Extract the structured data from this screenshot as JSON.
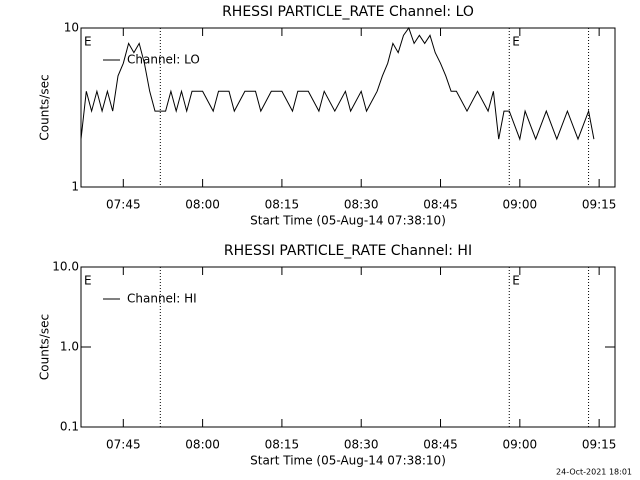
{
  "chart_data": [
    {
      "type": "line",
      "title": "RHESSI PARTICLE_RATE Channel: LO",
      "xlabel": "Start Time (05-Aug-14 07:38:10)",
      "ylabel": "Counts/sec",
      "x": [
        "07:37",
        "07:38",
        "07:39",
        "07:40",
        "07:41",
        "07:42",
        "07:43",
        "07:44",
        "07:45",
        "07:46",
        "07:47",
        "07:48",
        "07:49",
        "07:50",
        "07:51",
        "07:52",
        "07:53",
        "07:54",
        "07:55",
        "07:56",
        "07:57",
        "07:58",
        "07:59",
        "08:00",
        "08:02",
        "08:03",
        "08:05",
        "08:06",
        "08:08",
        "08:10",
        "08:11",
        "08:13",
        "08:15",
        "08:17",
        "08:18",
        "08:20",
        "08:22",
        "08:23",
        "08:25",
        "08:27",
        "08:28",
        "08:30",
        "08:31",
        "08:33",
        "08:34",
        "08:35",
        "08:36",
        "08:37",
        "08:38",
        "08:39",
        "08:40",
        "08:41",
        "08:42",
        "08:43",
        "08:44",
        "08:45",
        "08:46",
        "08:47",
        "08:48",
        "08:50",
        "08:52",
        "08:54",
        "08:55",
        "08:56",
        "08:57",
        "08:58",
        "09:00",
        "09:01",
        "09:03",
        "09:05",
        "09:07",
        "09:09",
        "09:11",
        "09:13",
        "09:14"
      ],
      "series": [
        {
          "name": "Channel: LO",
          "color": "#000000",
          "values": [
            2,
            4,
            3,
            4,
            3,
            4,
            3,
            5,
            6,
            8,
            7,
            8,
            6,
            4,
            3,
            3,
            3,
            4,
            3,
            4,
            3,
            4,
            4,
            4,
            3,
            4,
            4,
            3,
            4,
            4,
            3,
            4,
            4,
            3,
            4,
            4,
            3,
            4,
            3,
            4,
            3,
            4,
            3,
            4,
            5,
            6,
            8,
            7,
            9,
            10,
            8,
            9,
            8,
            9,
            7,
            6,
            5,
            4,
            4,
            3,
            4,
            3,
            4,
            2,
            3,
            3,
            2,
            3,
            2,
            3,
            2,
            3,
            2,
            3,
            2
          ]
        }
      ],
      "xlim": [
        "07:37",
        "09:18"
      ],
      "ylim": [
        1,
        10
      ],
      "log_y": true,
      "xticks": [
        "07:45",
        "08:00",
        "08:15",
        "08:30",
        "08:45",
        "09:00",
        "09:15"
      ],
      "yticks": [
        1,
        10
      ],
      "vlines": [
        "07:52",
        "08:58",
        "09:13"
      ],
      "annotations": [
        {
          "text": "E",
          "x": "07:37"
        },
        {
          "text": "E",
          "x": "08:58"
        }
      ]
    },
    {
      "type": "line",
      "title": "RHESSI PARTICLE_RATE Channel: HI",
      "xlabel": "Start Time (05-Aug-14 07:38:10)",
      "ylabel": "Counts/sec",
      "x": [],
      "series": [
        {
          "name": "Channel: HI",
          "color": "#000000",
          "values": []
        }
      ],
      "xlim": [
        "07:37",
        "09:18"
      ],
      "ylim": [
        0.1,
        10
      ],
      "log_y": true,
      "xticks": [
        "07:45",
        "08:00",
        "08:15",
        "08:30",
        "08:45",
        "09:00",
        "09:15"
      ],
      "yticks": [
        0.1,
        {
          "value": 1,
          "label": "1.0"
        },
        {
          "value": 10,
          "label": "10.0"
        }
      ],
      "vlines": [
        "07:52",
        "08:58",
        "09:13"
      ],
      "annotations": [
        {
          "text": "E",
          "x": "07:37"
        },
        {
          "text": "E",
          "x": "08:58"
        }
      ]
    }
  ],
  "footer": "24-Oct-2021 18:01"
}
